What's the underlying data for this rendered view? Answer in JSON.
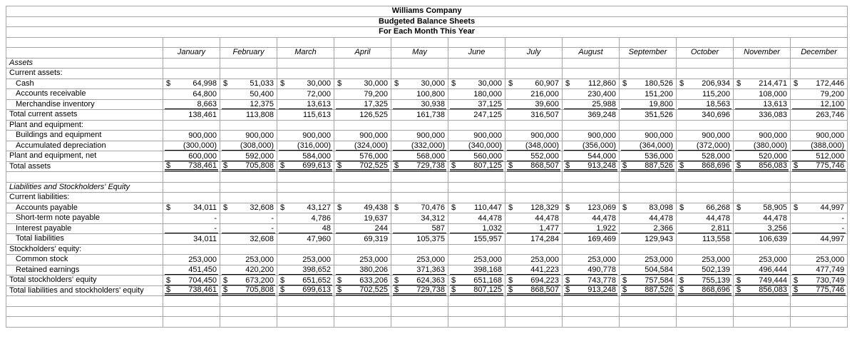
{
  "page": {
    "background": "#ffffff",
    "gridline_color": "#a6a6a6",
    "text_color": "#000000",
    "rule_color": "#000000"
  },
  "title": {
    "company": "Williams Company",
    "report": "Budgeted Balance Sheets",
    "period": "For Each Month This Year"
  },
  "columns": [
    "January",
    "February",
    "March",
    "April",
    "May",
    "June",
    "July",
    "August",
    "September",
    "October",
    "November",
    "December"
  ],
  "rows": [
    {
      "name": "assets-header",
      "label": "Assets",
      "italic": true,
      "cells": null
    },
    {
      "name": "current-assets-header",
      "label": "Current assets:",
      "cells": null
    },
    {
      "name": "cash",
      "label": "Cash",
      "indent": true,
      "dollar": true,
      "cells": [
        "64,998",
        "51,033",
        "30,000",
        "30,000",
        "30,000",
        "30,000",
        "60,907",
        "112,860",
        "180,526",
        "206,934",
        "214,471",
        "172,446"
      ]
    },
    {
      "name": "accounts-receivable",
      "label": "Accounts receivable",
      "indent": true,
      "cells": [
        "64,800",
        "50,400",
        "72,000",
        "79,200",
        "100,800",
        "180,000",
        "216,000",
        "230,400",
        "151,200",
        "115,200",
        "108,000",
        "79,200"
      ]
    },
    {
      "name": "merchandise-inventory",
      "label": "Merchandise inventory",
      "indent": true,
      "underline": "single",
      "cells": [
        "8,663",
        "12,375",
        "13,613",
        "17,325",
        "30,938",
        "37,125",
        "39,600",
        "25,988",
        "19,800",
        "18,563",
        "13,613",
        "12,100"
      ]
    },
    {
      "name": "total-current-assets",
      "label": "Total current assets",
      "cells": [
        "138,461",
        "113,808",
        "115,613",
        "126,525",
        "161,738",
        "247,125",
        "316,507",
        "369,248",
        "351,526",
        "340,696",
        "336,083",
        "263,746"
      ]
    },
    {
      "name": "plant-equipment-header",
      "label": "Plant and equipment:",
      "cells": null
    },
    {
      "name": "buildings-equipment",
      "label": "Buildings and equipment",
      "indent": true,
      "cells": [
        "900,000",
        "900,000",
        "900,000",
        "900,000",
        "900,000",
        "900,000",
        "900,000",
        "900,000",
        "900,000",
        "900,000",
        "900,000",
        "900,000"
      ]
    },
    {
      "name": "accumulated-depreciation",
      "label": "Accumulated depreciation",
      "indent": true,
      "underline": "single",
      "cells": [
        "(300,000)",
        "(308,000)",
        "(316,000)",
        "(324,000)",
        "(332,000)",
        "(340,000)",
        "(348,000)",
        "(356,000)",
        "(364,000)",
        "(372,000)",
        "(380,000)",
        "(388,000)"
      ]
    },
    {
      "name": "plant-equipment-net",
      "label": "Plant and equipment, net",
      "underline": "single",
      "cells": [
        "600,000",
        "592,000",
        "584,000",
        "576,000",
        "568,000",
        "560,000",
        "552,000",
        "544,000",
        "536,000",
        "528,000",
        "520,000",
        "512,000"
      ]
    },
    {
      "name": "total-assets",
      "label": "Total assets",
      "dollar": true,
      "underline": "double",
      "cells": [
        "738,461",
        "705,808",
        "699,613",
        "702,525",
        "729,738",
        "807,125",
        "868,507",
        "913,248",
        "887,526",
        "868,696",
        "856,083",
        "775,746"
      ]
    },
    {
      "name": "spacer-1",
      "label": "",
      "cells": null
    },
    {
      "name": "liabilities-equity-header",
      "label": "Liabilities and Stockholders' Equity",
      "italic": true,
      "cells": null
    },
    {
      "name": "current-liabilities-header",
      "label": "Current liabilities:",
      "cells": null
    },
    {
      "name": "accounts-payable",
      "label": "Accounts payable",
      "indent": true,
      "dollar": true,
      "cells": [
        "34,011",
        "32,608",
        "43,127",
        "49,438",
        "70,476",
        "110,447",
        "128,329",
        "123,069",
        "83,098",
        "66,268",
        "58,905",
        "44,997"
      ]
    },
    {
      "name": "short-term-note-payable",
      "label": "Short-term note payable",
      "indent": true,
      "cells": [
        "-",
        "-",
        "4,786",
        "19,637",
        "34,312",
        "44,478",
        "44,478",
        "44,478",
        "44,478",
        "44,478",
        "44,478",
        "-"
      ]
    },
    {
      "name": "interest-payable",
      "label": "Interest payable",
      "indent": true,
      "underline": "single",
      "cells": [
        "-",
        "-",
        "48",
        "244",
        "587",
        "1,032",
        "1,477",
        "1,922",
        "2,366",
        "2,811",
        "3,256",
        "-"
      ]
    },
    {
      "name": "total-liabilities",
      "label": "Total liabilities",
      "indent": true,
      "cells": [
        "34,011",
        "32,608",
        "47,960",
        "69,319",
        "105,375",
        "155,957",
        "174,284",
        "169,469",
        "129,943",
        "113,558",
        "106,639",
        "44,997"
      ]
    },
    {
      "name": "stockholders-equity-header",
      "label": "Stockholders' equity:",
      "cells": null
    },
    {
      "name": "common-stock",
      "label": "Common stock",
      "indent": true,
      "cells": [
        "253,000",
        "253,000",
        "253,000",
        "253,000",
        "253,000",
        "253,000",
        "253,000",
        "253,000",
        "253,000",
        "253,000",
        "253,000",
        "253,000"
      ]
    },
    {
      "name": "retained-earnings",
      "label": "Retained earnings",
      "indent": true,
      "underline": "single",
      "cells": [
        "451,450",
        "420,200",
        "398,652",
        "380,206",
        "371,363",
        "398,168",
        "441,223",
        "490,778",
        "504,584",
        "502,139",
        "496,444",
        "477,749"
      ]
    },
    {
      "name": "total-stockholders-equity",
      "label": "Total stockholders' equity",
      "dollar": true,
      "underline": "single",
      "cells": [
        "704,450",
        "673,200",
        "651,652",
        "633,206",
        "624,363",
        "651,168",
        "694,223",
        "743,778",
        "757,584",
        "755,139",
        "749,444",
        "730,749"
      ]
    },
    {
      "name": "total-liabilities-and-equity",
      "label": "Total liabilities and stockholders' equity",
      "dollar": true,
      "underline": "double",
      "cells": [
        "738,461",
        "705,808",
        "699,613",
        "702,525",
        "729,738",
        "807,125",
        "868,507",
        "913,248",
        "887,526",
        "868,696",
        "856,083",
        "775,746"
      ]
    },
    {
      "name": "spacer-2",
      "label": "",
      "cells": null
    },
    {
      "name": "spacer-3",
      "label": "",
      "cells": null
    },
    {
      "name": "spacer-4",
      "label": "",
      "cells": null
    }
  ]
}
